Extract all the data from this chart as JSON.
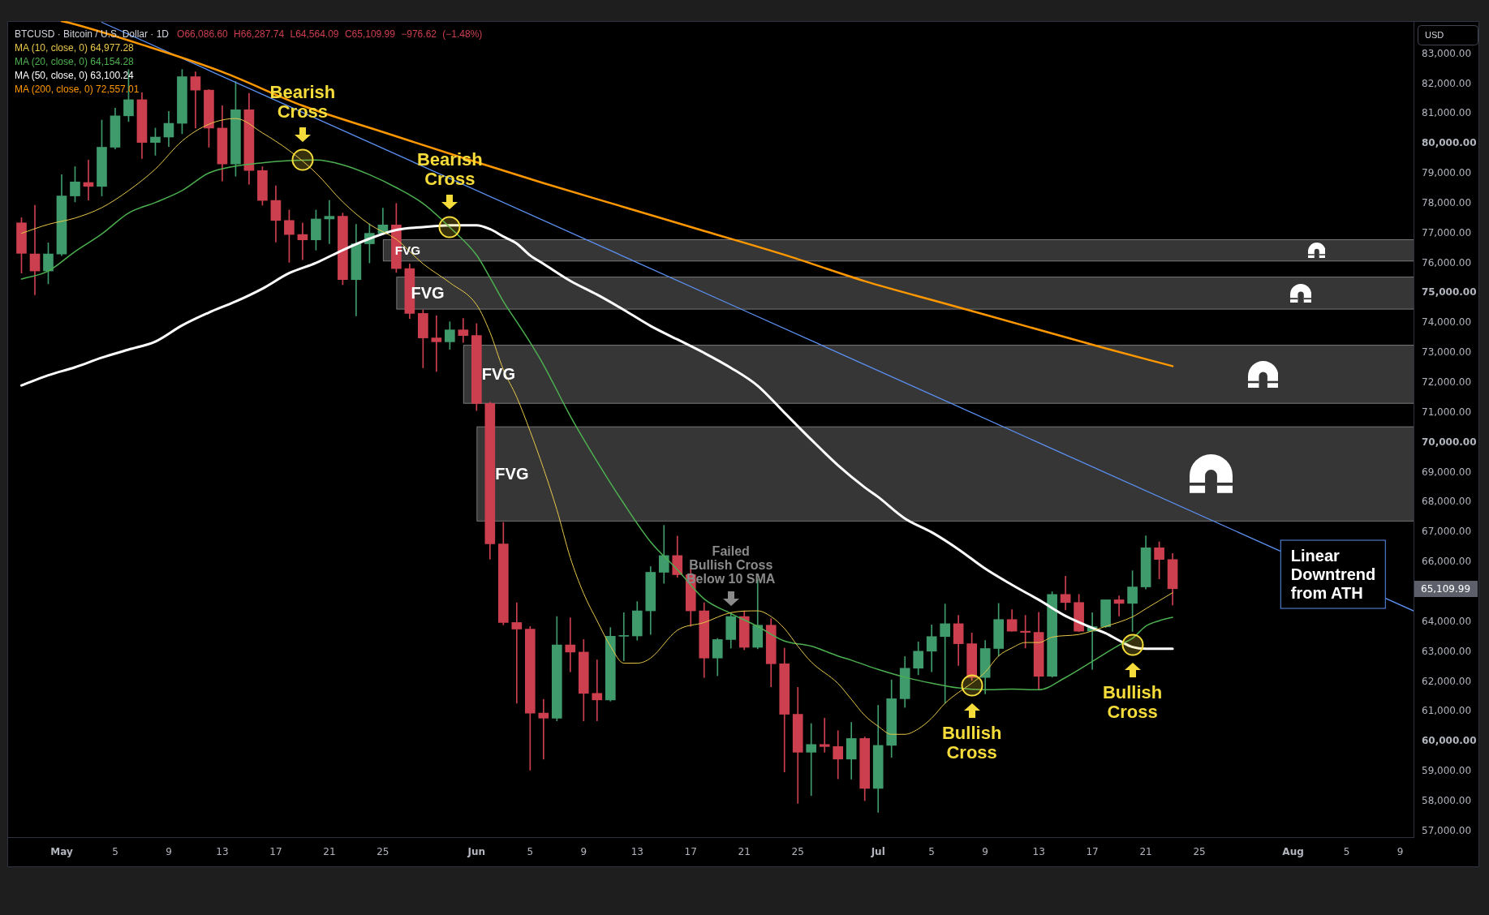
{
  "chart_data": {
    "type": "candlestick",
    "title": "BTCUSD · Bitcoin / U.S. Dollar · 1D",
    "subtitle": "O66,086.60 H66,287.74 L64,564.09 C65,109.99 −976.62 (−1.48%)",
    "ylabel": "USD",
    "legend": "top left",
    "x": [
      "--04-28",
      "--04-29",
      "--04-30",
      "--05-01",
      "--05-02",
      "--05-03",
      "--05-04",
      "--05-05",
      "--05-06",
      "--05-07",
      "--05-08",
      "--05-09",
      "--05-10",
      "--05-11",
      "--05-12",
      "--05-13",
      "--05-14",
      "--05-15",
      "--05-16",
      "--05-17",
      "--05-18",
      "--05-19",
      "--05-20",
      "--05-21",
      "--05-22",
      "--05-23",
      "--05-24",
      "--05-25",
      "--05-26",
      "--05-27",
      "--05-28",
      "--05-29",
      "--05-30",
      "--05-31",
      "--06-01",
      "--06-02",
      "--06-03",
      "--06-04",
      "--06-05",
      "--06-06",
      "--06-07",
      "--06-08",
      "--06-09",
      "--06-10",
      "--06-11",
      "--06-12",
      "--06-13",
      "--06-14",
      "--06-15",
      "--06-16",
      "--06-17",
      "--06-18",
      "--06-19",
      "--06-20",
      "--06-21",
      "--06-22",
      "--06-23",
      "--06-24",
      "--06-25",
      "--06-26",
      "--06-27",
      "--06-28",
      "--06-29",
      "--06-30",
      "--07-01",
      "--07-02",
      "--07-03",
      "--07-04",
      "--07-05",
      "--07-06",
      "--07-07",
      "--07-08",
      "--07-09",
      "--07-10",
      "--07-11",
      "--07-12",
      "--07-13",
      "--07-14",
      "--07-15",
      "--07-16",
      "--07-17",
      "--07-18",
      "--07-19",
      "--07-20",
      "--07-21",
      "--07-22",
      "--07-23"
    ],
    "ohlc": [
      [
        77350,
        77520,
        75670,
        76330
      ],
      [
        76310,
        77940,
        74940,
        75740
      ],
      [
        75740,
        76680,
        75310,
        76310
      ],
      [
        76310,
        78960,
        76250,
        78250
      ],
      [
        78250,
        79230,
        78050,
        78720
      ],
      [
        78700,
        79450,
        78110,
        78570
      ],
      [
        78570,
        80790,
        78250,
        79880
      ],
      [
        79880,
        81190,
        79820,
        80930
      ],
      [
        80930,
        82480,
        80740,
        81470
      ],
      [
        81470,
        81700,
        79500,
        80040
      ],
      [
        80040,
        80520,
        79610,
        80220
      ],
      [
        80220,
        81080,
        79900,
        80680
      ],
      [
        80680,
        82480,
        80330,
        82240
      ],
      [
        82240,
        82400,
        80520,
        81790
      ],
      [
        81790,
        81810,
        79880,
        80520
      ],
      [
        80520,
        81270,
        78750,
        79320
      ],
      [
        79320,
        82080,
        78910,
        81130
      ],
      [
        81130,
        81680,
        78640,
        79100
      ],
      [
        79100,
        79230,
        77940,
        78100
      ],
      [
        78100,
        78590,
        76710,
        77430
      ],
      [
        77430,
        77780,
        76030,
        76960
      ],
      [
        76960,
        77350,
        76120,
        76780
      ],
      [
        76780,
        77780,
        76440,
        77480
      ],
      [
        77480,
        78100,
        76650,
        77570
      ],
      [
        77570,
        77680,
        75280,
        75450
      ],
      [
        75450,
        77300,
        74240,
        76650
      ],
      [
        76650,
        77320,
        76010,
        77000
      ],
      [
        77000,
        77840,
        76980,
        77280
      ],
      [
        77280,
        78000,
        75690,
        75820
      ],
      [
        75820,
        75980,
        74150,
        74320
      ],
      [
        74320,
        74440,
        72500,
        73500
      ],
      [
        73500,
        74240,
        72380,
        73370
      ],
      [
        73370,
        74040,
        73120,
        73770
      ],
      [
        73770,
        74150,
        73350,
        73580
      ],
      [
        73580,
        73980,
        71070,
        71310
      ],
      [
        71310,
        71350,
        66100,
        66610
      ],
      [
        66610,
        67330,
        63900,
        63980
      ],
      [
        63980,
        64640,
        61280,
        63760
      ],
      [
        63760,
        63850,
        59040,
        60950
      ],
      [
        60950,
        61410,
        59410,
        60780
      ],
      [
        60780,
        64180,
        60690,
        63230
      ],
      [
        63230,
        64140,
        62330,
        62990
      ],
      [
        62990,
        63410,
        60690,
        61610
      ],
      [
        61610,
        62730,
        60690,
        61390
      ],
      [
        61390,
        63810,
        61350,
        63520
      ],
      [
        63520,
        64310,
        62700,
        63530
      ],
      [
        63530,
        64680,
        63390,
        64370
      ],
      [
        64370,
        65850,
        63580,
        65660
      ],
      [
        65660,
        67230,
        65290,
        66220
      ],
      [
        66220,
        66870,
        65490,
        65580
      ],
      [
        65580,
        65750,
        63850,
        64370
      ],
      [
        64370,
        64640,
        62140,
        62790
      ],
      [
        62790,
        63450,
        62200,
        63410
      ],
      [
        63410,
        64310,
        63120,
        64180
      ],
      [
        64180,
        64370,
        63070,
        63150
      ],
      [
        63150,
        65430,
        63100,
        63890
      ],
      [
        63890,
        64110,
        61830,
        62600
      ],
      [
        62600,
        63120,
        58980,
        60910
      ],
      [
        60910,
        61810,
        57930,
        59640
      ],
      [
        59640,
        60600,
        58190,
        59900
      ],
      [
        59900,
        60780,
        59640,
        59830
      ],
      [
        59830,
        60360,
        58750,
        59410
      ],
      [
        59410,
        60640,
        58740,
        60100
      ],
      [
        60100,
        60150,
        58020,
        58430
      ],
      [
        58430,
        61210,
        57630,
        59870
      ],
      [
        59870,
        62060,
        59470,
        61430
      ],
      [
        61430,
        62840,
        61140,
        62450
      ],
      [
        62450,
        63330,
        62230,
        63020
      ],
      [
        63020,
        63900,
        62330,
        63510
      ],
      [
        63510,
        64600,
        61280,
        63940
      ],
      [
        63940,
        64220,
        62540,
        63270
      ],
      [
        63270,
        63630,
        62040,
        62140
      ],
      [
        62140,
        63380,
        61590,
        63110
      ],
      [
        63110,
        64620,
        62860,
        64080
      ],
      [
        64080,
        64410,
        63690,
        63690
      ],
      [
        63690,
        64220,
        63130,
        63650
      ],
      [
        63650,
        64320,
        61730,
        62180
      ],
      [
        62180,
        65010,
        62150,
        64920
      ],
      [
        64920,
        65530,
        64400,
        64650
      ],
      [
        64650,
        64920,
        63670,
        63690
      ],
      [
        63690,
        64310,
        62410,
        63840
      ],
      [
        63840,
        64740,
        63810,
        64740
      ],
      [
        64740,
        64870,
        64200,
        64620
      ],
      [
        64620,
        65710,
        63680,
        65170
      ],
      [
        65170,
        66880,
        65100,
        66480
      ],
      [
        66480,
        66680,
        65440,
        66090
      ],
      [
        66086.6,
        66287.74,
        64564.09,
        65109.99
      ]
    ],
    "colors": [
      "#cc3f4f",
      "#cc3f4f",
      "#3f9a6c",
      "#3f9a6c",
      "#3f9a6c",
      "#cc3f4f",
      "#3f9a6c",
      "#3f9a6c",
      "#3f9a6c",
      "#cc3f4f",
      "#3f9a6c",
      "#3f9a6c",
      "#3f9a6c",
      "#cc3f4f",
      "#cc3f4f",
      "#cc3f4f",
      "#3f9a6c",
      "#cc3f4f",
      "#cc3f4f",
      "#cc3f4f",
      "#cc3f4f",
      "#cc3f4f",
      "#3f9a6c",
      "#3f9a6c",
      "#cc3f4f",
      "#3f9a6c",
      "#3f9a6c",
      "#3f9a6c",
      "#cc3f4f",
      "#cc3f4f",
      "#cc3f4f",
      "#cc3f4f",
      "#3f9a6c",
      "#cc3f4f",
      "#cc3f4f",
      "#cc3f4f",
      "#cc3f4f",
      "#cc3f4f",
      "#cc3f4f",
      "#cc3f4f",
      "#3f9a6c",
      "#cc3f4f",
      "#cc3f4f",
      "#cc3f4f",
      "#3f9a6c",
      "#3f9a6c",
      "#3f9a6c",
      "#3f9a6c",
      "#3f9a6c",
      "#cc3f4f",
      "#cc3f4f",
      "#cc3f4f",
      "#3f9a6c",
      "#3f9a6c",
      "#cc3f4f",
      "#3f9a6c",
      "#cc3f4f",
      "#cc3f4f",
      "#cc3f4f",
      "#3f9a6c",
      "#cc3f4f",
      "#cc3f4f",
      "#3f9a6c",
      "#cc3f4f",
      "#3f9a6c",
      "#3f9a6c",
      "#3f9a6c",
      "#3f9a6c",
      "#3f9a6c",
      "#3f9a6c",
      "#cc3f4f",
      "#cc3f4f",
      "#3f9a6c",
      "#3f9a6c",
      "#cc3f4f",
      "#cc3f4f",
      "#cc3f4f",
      "#3f9a6c",
      "#cc3f4f",
      "#cc3f4f",
      "#3f9a6c",
      "#3f9a6c",
      "#cc3f4f",
      "#3f9a6c",
      "#3f9a6c",
      "#cc3f4f",
      "#cc3f4f"
    ],
    "series": [
      {
        "name": "MA (10, close, 0) 64,977.28",
        "type": "line",
        "color": "#e8c84a",
        "x": [
          "--04-28",
          "--04-30",
          "--05-02",
          "--05-04",
          "--05-06",
          "--05-08",
          "--05-10",
          "--05-12",
          "--05-14",
          "--05-16",
          "--05-18",
          "--05-20",
          "--05-22",
          "--05-24",
          "--05-26",
          "--05-28",
          "--05-30",
          "--06-01",
          "--06-02",
          "--06-03",
          "--06-04",
          "--06-05",
          "--06-06",
          "--06-07",
          "--06-08",
          "--06-09",
          "--06-10",
          "--06-11",
          "--06-12",
          "--06-13",
          "--06-14",
          "--06-16",
          "--06-18",
          "--06-20",
          "--06-22",
          "--06-23",
          "--06-24",
          "--06-25",
          "--06-26",
          "--06-28",
          "--06-29",
          "--06-30",
          "--07-01",
          "--07-02",
          "--07-03",
          "--07-04",
          "--07-05",
          "--07-06",
          "--07-07",
          "--07-08",
          "--07-09",
          "--07-10",
          "--07-11",
          "--07-12",
          "--07-13",
          "--07-14",
          "--07-16",
          "--07-18",
          "--07-20",
          "--07-21",
          "--07-22",
          "--07-23"
        ],
        "values": [
          77000,
          77300,
          77510,
          77860,
          78430,
          79150,
          80090,
          80650,
          80840,
          80360,
          79770,
          79020,
          78050,
          77300,
          76800,
          75980,
          75350,
          74610,
          73690,
          72440,
          71520,
          70380,
          69130,
          67750,
          66150,
          64950,
          64040,
          63190,
          62620,
          62620,
          62790,
          63720,
          63980,
          64310,
          64370,
          64180,
          63780,
          63190,
          62660,
          61940,
          61410,
          60870,
          60510,
          60240,
          60240,
          60420,
          60780,
          61280,
          61640,
          61950,
          62320,
          62860,
          63130,
          63310,
          63310,
          63490,
          63580,
          63850,
          64170,
          64440,
          64710,
          64977.28
        ]
      },
      {
        "name": "MA (20, close, 0) 64,154.28",
        "type": "line",
        "color": "#4caf50",
        "x": [
          "--04-28",
          "--04-30",
          "--05-02",
          "--05-04",
          "--05-06",
          "--05-08",
          "--05-10",
          "--05-12",
          "--05-14",
          "--05-16",
          "--05-18",
          "--05-20",
          "--05-22",
          "--05-24",
          "--05-26",
          "--05-28",
          "--05-30",
          "--06-01",
          "--06-02",
          "--06-03",
          "--06-04",
          "--06-05",
          "--06-06",
          "--06-08",
          "--06-10",
          "--06-12",
          "--06-14",
          "--06-16",
          "--06-18",
          "--06-20",
          "--06-22",
          "--06-24",
          "--06-26",
          "--06-28",
          "--06-29",
          "--07-01",
          "--07-03",
          "--07-05",
          "--07-07",
          "--07-09",
          "--07-11",
          "--07-13",
          "--07-15",
          "--07-17",
          "--07-19",
          "--07-20",
          "--07-21",
          "--07-22",
          "--07-23"
        ],
        "values": [
          75470,
          75740,
          76390,
          76980,
          77680,
          78030,
          78430,
          79020,
          79250,
          79360,
          79430,
          79450,
          79290,
          78960,
          78530,
          78000,
          77200,
          76270,
          75520,
          74720,
          74040,
          73350,
          72600,
          70890,
          69370,
          67960,
          66680,
          65750,
          64770,
          64280,
          63850,
          63360,
          63190,
          62860,
          62720,
          62410,
          62150,
          61950,
          61790,
          61730,
          61750,
          61730,
          62140,
          62680,
          63220,
          63450,
          63860,
          64040,
          64154.28
        ]
      },
      {
        "name": "MA (50, close, 0) 63,100.24",
        "type": "line",
        "color": "#ffffff",
        "x": [
          "--04-28",
          "--04-30",
          "--05-02",
          "--05-04",
          "--05-06",
          "--05-08",
          "--05-10",
          "--05-12",
          "--05-14",
          "--05-16",
          "--05-18",
          "--05-20",
          "--05-22",
          "--05-24",
          "--05-26",
          "--05-28",
          "--05-30",
          "--06-01",
          "--06-02",
          "--06-03",
          "--06-04",
          "--06-05",
          "--06-06",
          "--06-08",
          "--06-10",
          "--06-12",
          "--06-14",
          "--06-16",
          "--06-18",
          "--06-20",
          "--06-22",
          "--06-24",
          "--06-26",
          "--06-28",
          "--06-30",
          "--07-01",
          "--07-03",
          "--07-05",
          "--07-07",
          "--07-09",
          "--07-11",
          "--07-13",
          "--07-15",
          "--07-17",
          "--07-18",
          "--07-19",
          "--07-20",
          "--07-21",
          "--07-22",
          "--07-23"
        ],
        "values": [
          71910,
          72250,
          72520,
          72840,
          73110,
          73380,
          73920,
          74350,
          74720,
          75150,
          75670,
          76010,
          76440,
          76820,
          77110,
          77210,
          77270,
          77270,
          77140,
          76890,
          76660,
          76260,
          75980,
          75410,
          74950,
          74440,
          73900,
          73450,
          73000,
          72500,
          71900,
          71000,
          70100,
          69240,
          68500,
          68180,
          67460,
          67000,
          66430,
          65780,
          65240,
          64740,
          64200,
          63800,
          63620,
          63380,
          63160,
          63100,
          63100,
          63100.24
        ]
      },
      {
        "name": "MA (200, close, 0) 72,557.01",
        "type": "line",
        "color": "#ff9800",
        "x": [
          "--05-01",
          "--05-02",
          "--05-07",
          "--05-13",
          "--05-19",
          "--05-25",
          "--05-31",
          "--06-06",
          "--06-12",
          "--06-18",
          "--06-24",
          "--06-30",
          "--07-06",
          "--07-12",
          "--07-18",
          "--07-23"
        ],
        "values": [
          84100,
          83990,
          83310,
          82400,
          81270,
          80390,
          79520,
          78680,
          77880,
          77080,
          76280,
          75400,
          74650,
          73900,
          73150,
          72557.01
        ]
      },
      {
        "type": "line",
        "color": "#5b8ff0",
        "x": [
          "--05-04",
          "--08-10"
        ],
        "values": [
          84060,
          64370
        ]
      }
    ],
    "xlim": [
      "--04-27",
      "--08-10"
    ],
    "xticks": [
      {
        "value": "--05-01",
        "label": "May"
      },
      {
        "value": "--05-05",
        "label": "5"
      },
      {
        "value": "--05-09",
        "label": "9"
      },
      {
        "value": "--05-13",
        "label": "13"
      },
      {
        "value": "--05-17",
        "label": "17"
      },
      {
        "value": "--05-21",
        "label": "21"
      },
      {
        "value": "--05-25",
        "label": "25"
      },
      {
        "value": "--06-01",
        "label": "Jun"
      },
      {
        "value": "--06-05",
        "label": "5"
      },
      {
        "value": "--06-09",
        "label": "9"
      },
      {
        "value": "--06-13",
        "label": "13"
      },
      {
        "value": "--06-17",
        "label": "17"
      },
      {
        "value": "--06-21",
        "label": "21"
      },
      {
        "value": "--06-25",
        "label": "25"
      },
      {
        "value": "--07-01",
        "label": "Jul"
      },
      {
        "value": "--07-05",
        "label": "5"
      },
      {
        "value": "--07-09",
        "label": "9"
      },
      {
        "value": "--07-13",
        "label": "13"
      },
      {
        "value": "--07-17",
        "label": "17"
      },
      {
        "value": "--07-21",
        "label": "21"
      },
      {
        "value": "--07-25",
        "label": "25"
      },
      {
        "value": "--08-01",
        "label": "Aug"
      },
      {
        "value": "--08-05",
        "label": "5"
      },
      {
        "value": "--08-09",
        "label": "9"
      }
    ],
    "ylim": [
      56800,
      84100
    ],
    "yticks": [
      {
        "value": 57000,
        "label": "57,000.00"
      },
      {
        "value": 58000,
        "label": "58,000.00"
      },
      {
        "value": 59000,
        "label": "59,000.00"
      },
      {
        "value": 60000,
        "label": "60,000.00"
      },
      {
        "value": 61000,
        "label": "61,000.00"
      },
      {
        "value": 62000,
        "label": "62,000.00"
      },
      {
        "value": 63000,
        "label": "63,000.00"
      },
      {
        "value": 64000,
        "label": "64,000.00"
      },
      {
        "value": 66000,
        "label": "66,000.00"
      },
      {
        "value": 67000,
        "label": "67,000.00"
      },
      {
        "value": 68000,
        "label": "68,000.00"
      },
      {
        "value": 69000,
        "label": "69,000.00"
      },
      {
        "value": 70000,
        "label": "70,000.00"
      },
      {
        "value": 71000,
        "label": "71,000.00"
      },
      {
        "value": 72000,
        "label": "72,000.00"
      },
      {
        "value": 73000,
        "label": "73,000.00"
      },
      {
        "value": 74000,
        "label": "74,000.00"
      },
      {
        "value": 75000,
        "label": "75,000.00"
      },
      {
        "value": 76000,
        "label": "76,000.00"
      },
      {
        "value": 77000,
        "label": "77,000.00"
      },
      {
        "value": 78000,
        "label": "78,000.00"
      },
      {
        "value": 79000,
        "label": "79,000.00"
      },
      {
        "value": 80000,
        "label": "80,000.00"
      },
      {
        "value": 81000,
        "label": "81,000.00"
      },
      {
        "value": 82000,
        "label": "82,000.00"
      },
      {
        "value": 83000,
        "label": "83,000.00"
      }
    ],
    "bands": [
      {
        "axis": "y",
        "from": 76060,
        "to": 76800,
        "label": "FVG",
        "color": "#363636"
      },
      {
        "axis": "y",
        "from": 74450,
        "to": 75550,
        "label": "FVG",
        "color": "#363636"
      },
      {
        "axis": "y",
        "from": 71300,
        "to": 73270,
        "label": "FVG",
        "color": "#363636"
      },
      {
        "axis": "y",
        "from": 67360,
        "to": 70540,
        "label": "FVG",
        "color": "#363636"
      }
    ],
    "annotations": [
      {
        "text": "Bearish\nCross",
        "x": "--05-19",
        "y": 79450
      },
      {
        "text": "Bearish\nCross",
        "x": "--05-30",
        "y": 77220
      },
      {
        "text": "Failed\nBullish Cross\nBelow 10 SMA",
        "x": "--06-20",
        "y": 64330
      },
      {
        "text": "Bullish\nCross",
        "x": "--07-08",
        "y": 61880
      },
      {
        "text": "Bullish\nCross",
        "x": "--07-20",
        "y": 63240
      },
      {
        "text": "Linear\nDowntrend\nfrom ATH",
        "x": "--08-04",
        "y": 65580
      },
      "65,109.99"
    ]
  }
}
